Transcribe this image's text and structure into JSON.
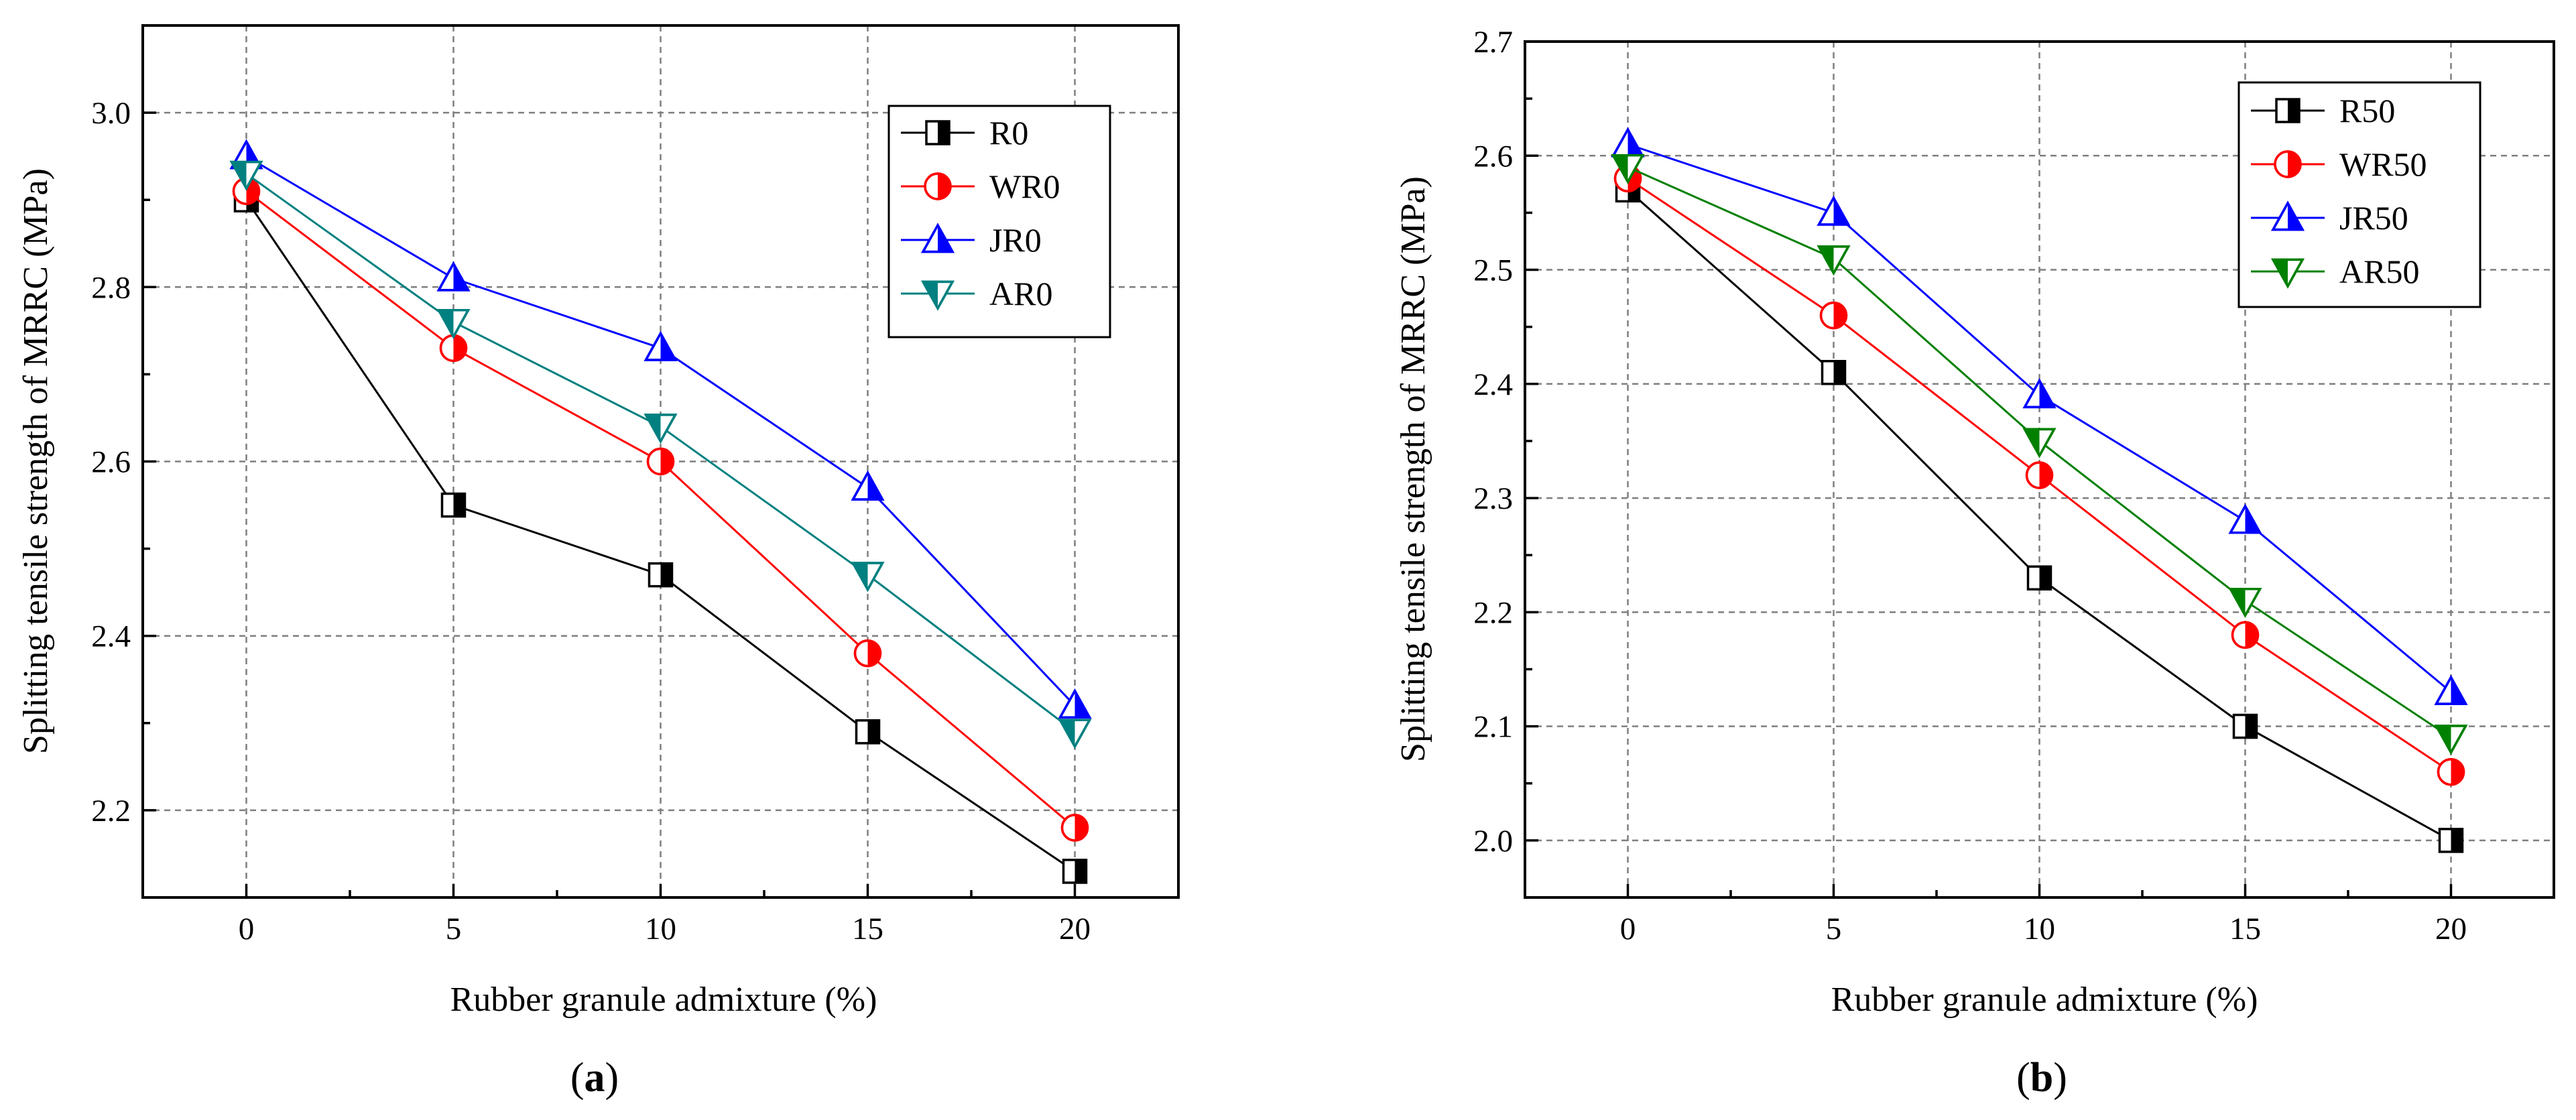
{
  "chart_data": [
    {
      "type": "line",
      "panel": "a",
      "caption": "(a)",
      "caption_open": "(",
      "caption_letter": "a",
      "caption_close": ")",
      "xlabel": "Rubber granule admixture (%)",
      "ylabel": "Splitting tensile strength of MRRC (MPa)",
      "x": [
        0,
        5,
        10,
        15,
        20
      ],
      "x_tick_labels": [
        "0",
        "5",
        "10",
        "15",
        "20"
      ],
      "xlim": [
        -2.5,
        22.5
      ],
      "ylim": [
        2.1,
        3.1
      ],
      "y_ticks": [
        2.2,
        2.4,
        2.6,
        2.8,
        3.0
      ],
      "y_tick_labels": [
        "2.2",
        "2.4",
        "2.6",
        "2.8",
        "3.0"
      ],
      "y_minor_step": 0.1,
      "grid": true,
      "legend_position": "top-right",
      "series": [
        {
          "name": "R0",
          "values": [
            2.9,
            2.55,
            2.47,
            2.29,
            2.13
          ],
          "color": "#000000",
          "marker": "half-square",
          "fill": "#000000"
        },
        {
          "name": "WR0",
          "values": [
            2.91,
            2.73,
            2.6,
            2.38,
            2.18
          ],
          "color": "#ff0000",
          "marker": "half-circle",
          "fill": "#ff0000"
        },
        {
          "name": "JR0",
          "values": [
            2.95,
            2.81,
            2.73,
            2.57,
            2.32
          ],
          "color": "#0000ff",
          "marker": "half-triangle-up",
          "fill": "#0000ff"
        },
        {
          "name": "AR0",
          "values": [
            2.93,
            2.76,
            2.64,
            2.47,
            2.29
          ],
          "color": "#008080",
          "marker": "half-triangle-down",
          "fill": "#008080"
        }
      ]
    },
    {
      "type": "line",
      "panel": "b",
      "caption": "(b)",
      "caption_open": "(",
      "caption_letter": "b",
      "caption_close": ")",
      "xlabel": "Rubber granule admixture (%)",
      "ylabel": "Splitting tensile strength of MRRC (MPa)",
      "x": [
        0,
        5,
        10,
        15,
        20
      ],
      "x_tick_labels": [
        "0",
        "5",
        "10",
        "15",
        "20"
      ],
      "xlim": [
        -2.5,
        22.5
      ],
      "ylim": [
        1.95,
        2.7
      ],
      "y_ticks": [
        2.0,
        2.1,
        2.2,
        2.3,
        2.4,
        2.5,
        2.6,
        2.7
      ],
      "y_tick_labels": [
        "2.0",
        "2.1",
        "2.2",
        "2.3",
        "2.4",
        "2.5",
        "2.6",
        "2.7"
      ],
      "y_minor_step": 0.05,
      "grid": true,
      "legend_position": "top-right",
      "series": [
        {
          "name": "R50",
          "values": [
            2.57,
            2.41,
            2.23,
            2.1,
            2.0
          ],
          "color": "#000000",
          "marker": "half-square",
          "fill": "#000000"
        },
        {
          "name": "WR50",
          "values": [
            2.58,
            2.46,
            2.32,
            2.18,
            2.06
          ],
          "color": "#ff0000",
          "marker": "half-circle",
          "fill": "#ff0000"
        },
        {
          "name": "JR50",
          "values": [
            2.61,
            2.55,
            2.39,
            2.28,
            2.13
          ],
          "color": "#0000ff",
          "marker": "half-triangle-up",
          "fill": "#0000ff"
        },
        {
          "name": "AR50",
          "values": [
            2.59,
            2.51,
            2.35,
            2.21,
            2.09
          ],
          "color": "#008000",
          "marker": "half-triangle-down",
          "fill": "#008000"
        }
      ]
    }
  ]
}
